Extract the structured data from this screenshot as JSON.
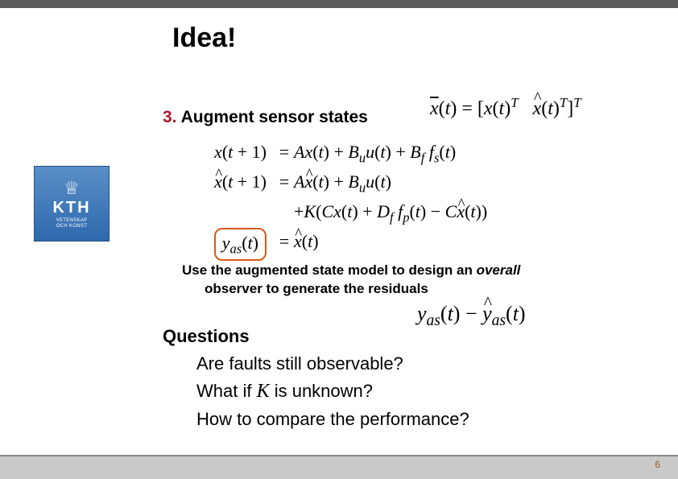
{
  "title": "Idea!",
  "point": {
    "number": "3.",
    "label": "Augment sensor states"
  },
  "augmented_def": "x̄(t) = [x(t)ᵀ  x̂(t)ᵀ]ᵀ",
  "equations": {
    "row1_lhs": "x(t + 1)",
    "row1_rhs": "Ax(t) + Bᵤu(t) + B_f f_s(t)",
    "row2_lhs": "x̂(t + 1)",
    "row2_rhs": "Ax̂(t) + Bᵤu(t)",
    "row3_rhs": "+K(Cx(t) + D_f f_p(t) − Cx̂(t))",
    "row4_lhs": "yₐₛ(t)",
    "row4_rhs": "x̂(t)",
    "highlight_color": "#d95a1a"
  },
  "use_text": {
    "line1_a": "Use the augmented state model to design an ",
    "line1_b": "overall",
    "line2": "observer to generate the residuals"
  },
  "residual": "yₐₛ(t) − ŷₐₛ(t)",
  "questions": {
    "heading": "Questions",
    "q1": "Are faults still observable?",
    "q2a": "What if ",
    "q2k": "K",
    "q2b": " is unknown?",
    "q3": "How to compare the performance?"
  },
  "logo": {
    "name": "KTH",
    "sub1": "VETENSKAP",
    "sub2": "OCH KONST",
    "bg_top": "#5a8fc7",
    "bg_bottom": "#2e69ad"
  },
  "page_number": "6",
  "colors": {
    "accent_red": "#ab1a2d",
    "top_bar": "#5a5a5a",
    "bottom_bar": "#c9c9c9"
  }
}
